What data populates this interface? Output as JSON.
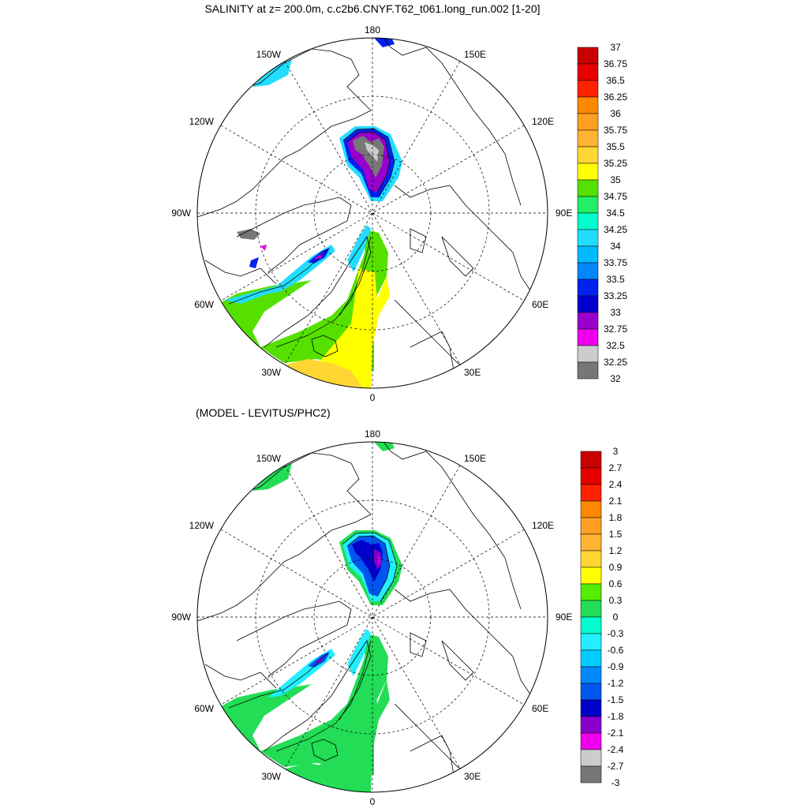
{
  "panels": [
    {
      "title": "SALINITY at z= 200.0m, c.c2b6.CNYF.T62_t061.long_run.002 [1-20]",
      "lon_labels": {
        "top": "180",
        "bottom": "0",
        "left": "90W",
        "right": "90E",
        "tl": "150W",
        "tr": "150E",
        "ul": "120W",
        "ur": "120E",
        "ll": "60W",
        "lr": "60E",
        "bl": "30W",
        "br": "30E"
      },
      "colorbar": {
        "labels": [
          "37",
          "36.75",
          "36.5",
          "36.25",
          "36",
          "35.75",
          "35.5",
          "35.25",
          "35",
          "34.75",
          "34.5",
          "34.25",
          "34",
          "33.75",
          "33.5",
          "33.25",
          "33",
          "32.75",
          "32.5",
          "32.25",
          "32"
        ],
        "colors": [
          "#c80000",
          "#e60000",
          "#ff2200",
          "#ff8800",
          "#ff9f22",
          "#ffb333",
          "#ffd633",
          "#ffff00",
          "#55e000",
          "#22ee66",
          "#00ffcc",
          "#22ddff",
          "#00bbff",
          "#0088ff",
          "#0022ee",
          "#0000cc",
          "#9900cc",
          "#ee00ee",
          "#cccccc",
          "#777777"
        ]
      }
    },
    {
      "title": "(MODEL - LEVITUS/PHC2)",
      "lon_labels": {
        "top": "180",
        "bottom": "0",
        "left": "90W",
        "right": "90E",
        "tl": "150W",
        "tr": "150E",
        "ul": "120W",
        "ur": "120E",
        "ll": "60W",
        "lr": "60E",
        "bl": "30W",
        "br": "30E"
      },
      "colorbar": {
        "labels": [
          "3",
          "2.7",
          "2.4",
          "2.1",
          "1.8",
          "1.5",
          "1.2",
          "0.9",
          "0.6",
          "0.3",
          "0",
          "-0.3",
          "-0.6",
          "-0.9",
          "-1.2",
          "-1.5",
          "-1.8",
          "-2.1",
          "-2.4",
          "-2.7",
          "-3"
        ],
        "colors": [
          "#c80000",
          "#e60000",
          "#ff2200",
          "#ff8800",
          "#ff9f22",
          "#ffb333",
          "#ffd633",
          "#ffff00",
          "#55ee00",
          "#22dd55",
          "#00ffcc",
          "#22eeff",
          "#00ccff",
          "#0088ff",
          "#0055ee",
          "#0000cc",
          "#8800cc",
          "#ee00ee",
          "#cccccc",
          "#777777"
        ]
      }
    }
  ]
}
